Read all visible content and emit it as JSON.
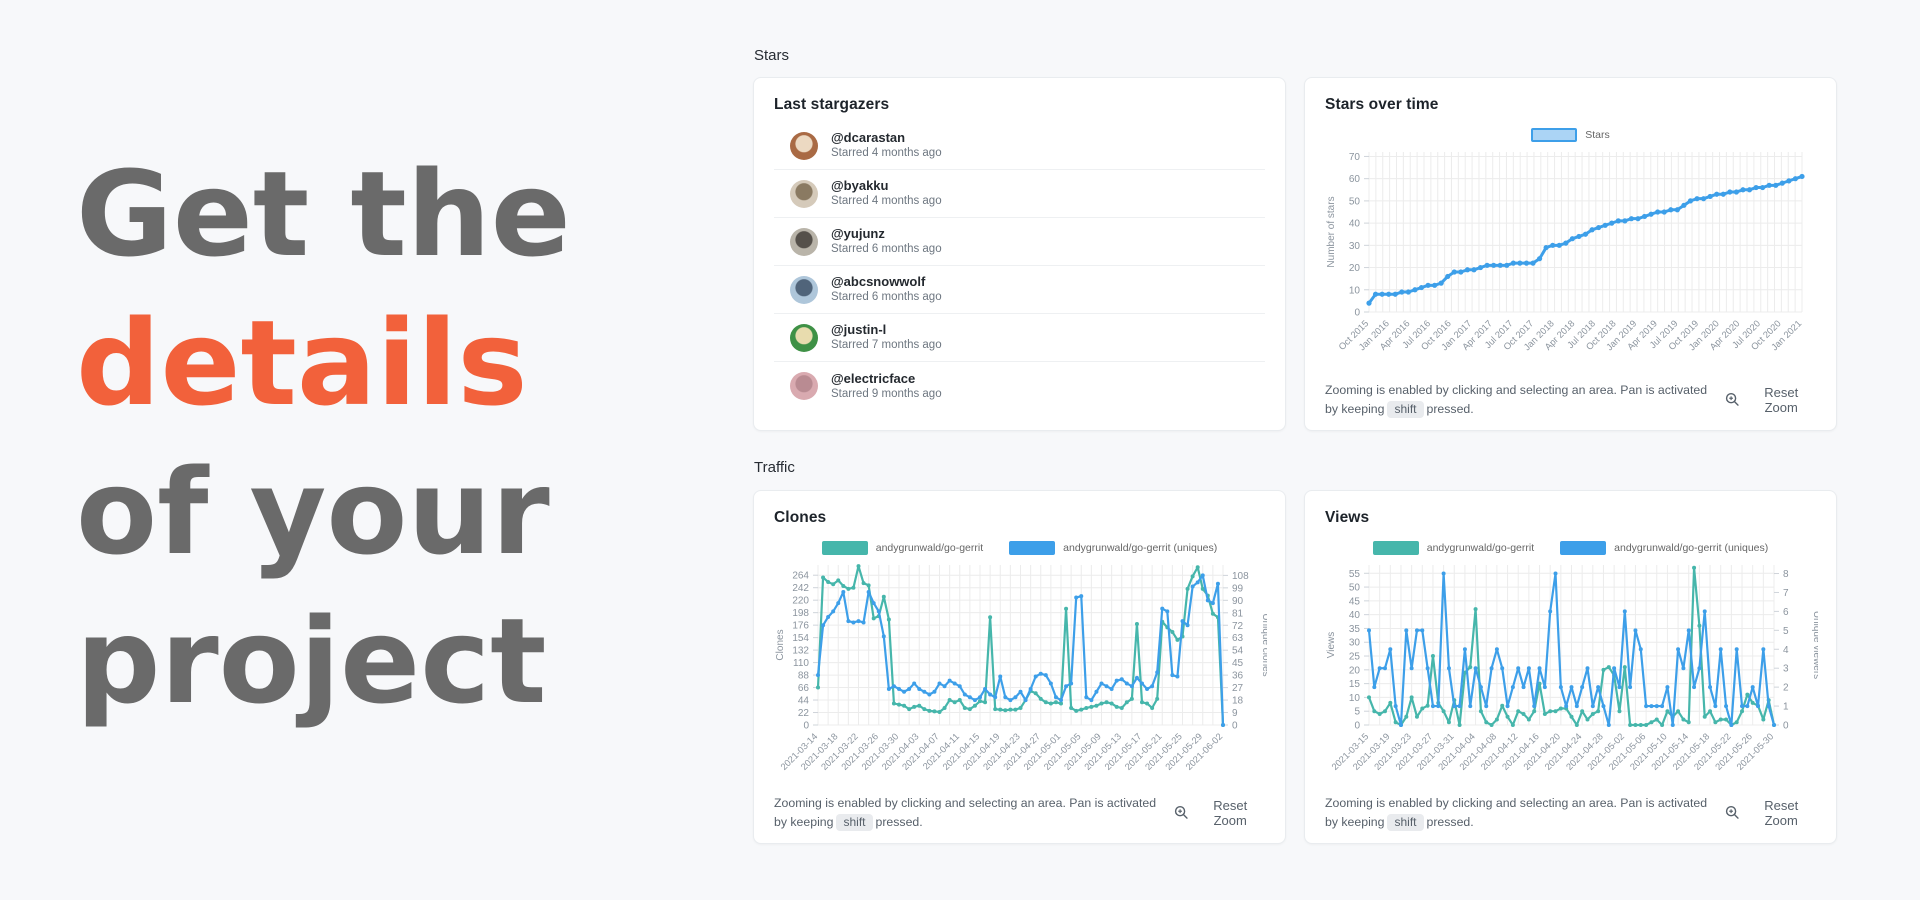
{
  "page": {
    "background": "#f7f8fa",
    "card_background": "#ffffff"
  },
  "hero": {
    "line1": "Get the",
    "line2": "details",
    "line3": "of your",
    "line4": "project",
    "text_color": "#6a6a6a",
    "accent_color": "#f2613b"
  },
  "sections": {
    "stars": "Stars",
    "traffic": "Traffic"
  },
  "stargazers": {
    "title": "Last stargazers",
    "users": [
      {
        "handle": "@dcarastan",
        "starred": "Starred 4 months ago",
        "avatar_colors": [
          "#a96a44",
          "#ecd9c2"
        ]
      },
      {
        "handle": "@byakku",
        "starred": "Starred 4 months ago",
        "avatar_colors": [
          "#d5caba",
          "#8a7a62"
        ]
      },
      {
        "handle": "@yujunz",
        "starred": "Starred 6 months ago",
        "avatar_colors": [
          "#b9b4a9",
          "#55504a"
        ]
      },
      {
        "handle": "@abcsnowwolf",
        "starred": "Starred 6 months ago",
        "avatar_colors": [
          "#aec6da",
          "#50647a"
        ]
      },
      {
        "handle": "@justin-l",
        "starred": "Starred 7 months ago",
        "avatar_colors": [
          "#3f9146",
          "#e8dcae"
        ]
      },
      {
        "handle": "@electricface",
        "starred": "Starred 9 months ago",
        "avatar_colors": [
          "#d9aab0",
          "#b98b92"
        ]
      }
    ]
  },
  "footer_note": {
    "line1": "Zooming is enabled by clicking and selecting an area. Pan is activated",
    "line2_before": "by keeping",
    "kbd": "shift",
    "line2_after": "pressed.",
    "reset_label": "Reset Zoom"
  },
  "colors": {
    "teal": "#46b6ab",
    "blue": "#3d9fe9",
    "grid": "#ececec",
    "tick_text": "#8b949e",
    "tick_mark": "#cfd4da"
  },
  "chart_data": [
    {
      "id": "stars",
      "type": "line",
      "title": "Stars over time",
      "ylabel": "Number of stars",
      "y_ticks": [
        0,
        10,
        20,
        30,
        40,
        50,
        60,
        70
      ],
      "ylim": [
        0,
        72
      ],
      "x_labels": [
        "Oct 2015",
        "Jan 2016",
        "Apr 2016",
        "Jul 2016",
        "Oct 2016",
        "Jan 2017",
        "Apr 2017",
        "Jul 2017",
        "Oct 2017",
        "Jan 2018",
        "Apr 2018",
        "Jul 2018",
        "Oct 2018",
        "Jan 2019",
        "Apr 2019",
        "Jul 2019",
        "Oct 2019",
        "Jan 2020",
        "Apr 2020",
        "Jul 2020",
        "Oct 2020",
        "Jan 2021"
      ],
      "grid_x": 63,
      "legend": [
        {
          "label": "Stars",
          "fill": "#abd4f5",
          "border": "#3d9fe9"
        }
      ],
      "series": [
        {
          "name": "Stars",
          "color": "#3d9fe9",
          "axis": "left",
          "line_width": 3,
          "values": [
            4,
            8,
            8,
            8,
            8,
            9,
            9,
            10,
            11,
            12,
            12,
            13,
            16,
            18,
            18,
            19,
            19,
            20,
            21,
            21,
            21,
            21,
            22,
            22,
            22,
            22,
            24,
            29,
            30,
            30,
            31,
            33,
            34,
            35,
            37,
            38,
            39,
            40,
            41,
            41,
            42,
            42,
            43,
            44,
            45,
            45,
            46,
            46,
            48,
            50,
            51,
            51,
            52,
            53,
            53,
            54,
            54,
            55,
            55,
            56,
            56,
            57,
            57,
            58,
            59,
            60,
            61
          ]
        }
      ]
    },
    {
      "id": "clones",
      "type": "line",
      "title": "Clones",
      "ylabel": "Clones",
      "y2label": "Unique clones",
      "y_ticks": [
        0,
        22,
        44,
        66,
        88,
        110,
        132,
        154,
        176,
        198,
        220,
        242,
        264
      ],
      "ylim": [
        0,
        282
      ],
      "y2_ticks": [
        0,
        9,
        18,
        27,
        36,
        45,
        54,
        63,
        72,
        81,
        90,
        99,
        108
      ],
      "y2lim": [
        0,
        115.5
      ],
      "x_labels": [
        "2021-03-14",
        "2021-03-18",
        "2021-03-22",
        "2021-03-26",
        "2021-03-30",
        "2021-04-03",
        "2021-04-07",
        "2021-04-11",
        "2021-04-15",
        "2021-04-19",
        "2021-04-23",
        "2021-04-27",
        "2021-05-01",
        "2021-05-05",
        "2021-05-09",
        "2021-05-13",
        "2021-05-17",
        "2021-05-21",
        "2021-05-25",
        "2021-05-29",
        "2021-06-02"
      ],
      "grid_x": 40,
      "legend": [
        {
          "label": "andygrunwald/go-gerrit",
          "fill": "#46b6ab",
          "border": "#46b6ab"
        },
        {
          "label": "andygrunwald/go-gerrit (uniques)",
          "fill": "#3d9fe9",
          "border": "#3d9fe9"
        }
      ],
      "series": [
        {
          "name": "andygrunwald/go-gerrit",
          "color": "#46b6ab",
          "axis": "left",
          "line_width": 2.2,
          "values": [
            66,
            260,
            252,
            248,
            255,
            245,
            240,
            242,
            280,
            250,
            246,
            188,
            192,
            226,
            186,
            38,
            36,
            34,
            28,
            32,
            34,
            28,
            25,
            24,
            23,
            30,
            44,
            40,
            44,
            30,
            28,
            34,
            42,
            40,
            190,
            28,
            27,
            26,
            27,
            27,
            30,
            44,
            60,
            56,
            46,
            40,
            38,
            40,
            38,
            205,
            30,
            25,
            27,
            30,
            32,
            34,
            38,
            40,
            38,
            32,
            30,
            40,
            46,
            178,
            40,
            38,
            30,
            46,
            182,
            172,
            164,
            150,
            156,
            240,
            262,
            278,
            240,
            228,
            196,
            190,
            0
          ]
        },
        {
          "name": "andygrunwald/go-gerrit (uniques)",
          "color": "#3d9fe9",
          "axis": "right",
          "line_width": 2.2,
          "values": [
            36,
            72,
            78,
            82,
            88,
            96,
            75,
            74,
            75,
            74,
            96,
            88,
            82,
            64,
            26,
            28,
            26,
            24,
            26,
            30,
            26,
            24,
            22,
            24,
            30,
            28,
            32,
            30,
            28,
            22,
            20,
            18,
            20,
            26,
            22,
            20,
            35,
            20,
            18,
            20,
            24,
            18,
            26,
            35,
            37,
            36,
            30,
            20,
            18,
            28,
            30,
            92,
            93,
            20,
            18,
            24,
            30,
            28,
            26,
            32,
            33,
            30,
            28,
            34,
            30,
            26,
            28,
            38,
            84,
            82,
            36,
            35,
            75,
            72,
            100,
            103,
            108,
            90,
            88,
            102,
            0
          ]
        }
      ]
    },
    {
      "id": "views",
      "type": "line",
      "title": "Views",
      "ylabel": "Views",
      "y2label": "Unique viewers",
      "y_ticks": [
        0,
        5,
        10,
        15,
        20,
        25,
        30,
        35,
        40,
        45,
        50,
        55
      ],
      "ylim": [
        0,
        58
      ],
      "y2_ticks": [
        0,
        1,
        2,
        3,
        4,
        5,
        6,
        7,
        8
      ],
      "y2lim": [
        0,
        8.45
      ],
      "x_labels": [
        "2021-03-15",
        "2021-03-19",
        "2021-03-23",
        "2021-03-27",
        "2021-03-31",
        "2021-04-04",
        "2021-04-08",
        "2021-04-12",
        "2021-04-16",
        "2021-04-20",
        "2021-04-24",
        "2021-04-28",
        "2021-05-02",
        "2021-05-06",
        "2021-05-10",
        "2021-05-14",
        "2021-05-18",
        "2021-05-22",
        "2021-05-26",
        "2021-05-30"
      ],
      "grid_x": 38,
      "legend": [
        {
          "label": "andygrunwald/go-gerrit",
          "fill": "#46b6ab",
          "border": "#46b6ab"
        },
        {
          "label": "andygrunwald/go-gerrit (uniques)",
          "fill": "#3d9fe9",
          "border": "#3d9fe9"
        }
      ],
      "series": [
        {
          "name": "andygrunwald/go-gerrit",
          "color": "#46b6ab",
          "axis": "left",
          "line_width": 2.2,
          "values": [
            10,
            5,
            4,
            5,
            8,
            1,
            0,
            3,
            10,
            3,
            6,
            7,
            25,
            8,
            5,
            1,
            9,
            0,
            19,
            21,
            42,
            5,
            1,
            0,
            2,
            7,
            3,
            0,
            5,
            4,
            2,
            5,
            15,
            4,
            5,
            5,
            6,
            6,
            3,
            0,
            5,
            2,
            4,
            5,
            20,
            21,
            18,
            5,
            21,
            0,
            0,
            0,
            0,
            1,
            2,
            0,
            5,
            3,
            5,
            2,
            1,
            57,
            36,
            3,
            5,
            1,
            2,
            2,
            0,
            1,
            5,
            11,
            8,
            7,
            2,
            9,
            0
          ]
        },
        {
          "name": "andygrunwald/go-gerrit (uniques)",
          "color": "#3d9fe9",
          "axis": "right",
          "line_width": 2.2,
          "values": [
            5,
            2,
            3,
            3,
            4,
            1,
            0,
            5,
            3,
            5,
            5,
            3,
            1,
            1,
            8,
            3,
            1,
            1,
            4,
            1,
            3,
            2,
            1,
            3,
            4,
            3,
            1,
            2,
            3,
            2,
            3,
            1,
            3,
            2,
            6,
            8,
            2,
            1,
            2,
            1,
            2,
            3,
            1,
            2,
            1,
            0,
            3,
            2,
            6,
            2,
            5,
            4,
            1,
            1,
            1,
            1,
            2,
            0,
            4,
            3,
            5,
            2,
            3,
            6,
            2,
            1,
            4,
            1,
            0,
            4,
            1,
            1,
            2,
            1,
            4,
            1,
            0
          ]
        }
      ]
    }
  ]
}
